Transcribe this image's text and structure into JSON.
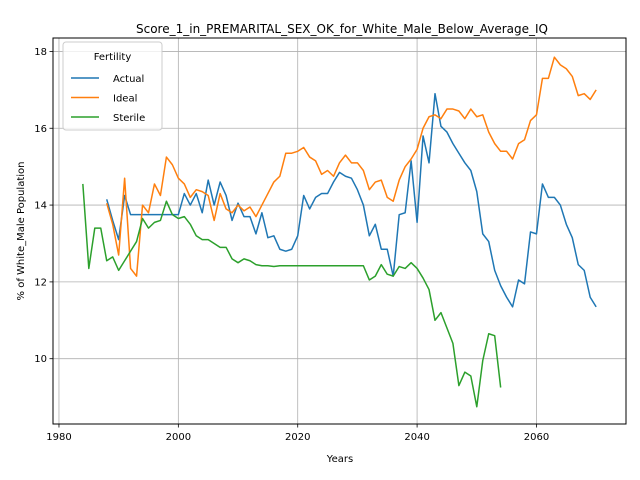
{
  "chart_data": {
    "type": "line",
    "title": "Score_1_in_PREMARITAL_SEX_OK_for_White_Male_Below_Average_IQ",
    "xlabel": "Years",
    "ylabel": "% of White_Male Population",
    "xlim": [
      1979,
      2075
    ],
    "ylim": [
      8.3,
      18.35
    ],
    "xticks": [
      1980,
      2000,
      2020,
      2040,
      2060
    ],
    "yticks": [
      10,
      12,
      14,
      16,
      18
    ],
    "grid": true,
    "legend": {
      "title": "Fertility",
      "placement": "top-left"
    },
    "series": [
      {
        "name": "Actual",
        "color": "#1f77b4",
        "points": [
          [
            1988,
            14.15
          ],
          [
            1989,
            13.6
          ],
          [
            1990,
            13.1
          ],
          [
            1991,
            14.25
          ],
          [
            1992,
            13.75
          ],
          [
            1993,
            13.75
          ],
          [
            1994,
            13.75
          ],
          [
            1995,
            13.75
          ],
          [
            1996,
            13.75
          ],
          [
            1997,
            13.75
          ],
          [
            1998,
            13.75
          ],
          [
            1999,
            13.75
          ],
          [
            2000,
            13.75
          ],
          [
            2001,
            14.3
          ],
          [
            2002,
            14.0
          ],
          [
            2003,
            14.3
          ],
          [
            2004,
            13.8
          ],
          [
            2005,
            14.65
          ],
          [
            2006,
            14.0
          ],
          [
            2007,
            14.6
          ],
          [
            2008,
            14.25
          ],
          [
            2009,
            13.6
          ],
          [
            2010,
            14.05
          ],
          [
            2011,
            13.7
          ],
          [
            2012,
            13.7
          ],
          [
            2013,
            13.25
          ],
          [
            2014,
            13.8
          ],
          [
            2015,
            13.15
          ],
          [
            2016,
            13.2
          ],
          [
            2017,
            12.85
          ],
          [
            2018,
            12.8
          ],
          [
            2019,
            12.85
          ],
          [
            2020,
            13.2
          ],
          [
            2021,
            14.25
          ],
          [
            2022,
            13.9
          ],
          [
            2023,
            14.2
          ],
          [
            2024,
            14.3
          ],
          [
            2025,
            14.3
          ],
          [
            2026,
            14.6
          ],
          [
            2027,
            14.85
          ],
          [
            2028,
            14.75
          ],
          [
            2029,
            14.7
          ],
          [
            2030,
            14.4
          ],
          [
            2031,
            14.0
          ],
          [
            2032,
            13.2
          ],
          [
            2033,
            13.5
          ],
          [
            2034,
            12.85
          ],
          [
            2035,
            12.85
          ],
          [
            2036,
            12.15
          ],
          [
            2037,
            13.75
          ],
          [
            2038,
            13.8
          ],
          [
            2039,
            15.15
          ],
          [
            2040,
            13.55
          ],
          [
            2041,
            15.8
          ],
          [
            2042,
            15.1
          ],
          [
            2043,
            16.9
          ],
          [
            2044,
            16.05
          ],
          [
            2045,
            15.9
          ],
          [
            2046,
            15.6
          ],
          [
            2047,
            15.35
          ],
          [
            2048,
            15.1
          ],
          [
            2049,
            14.9
          ],
          [
            2050,
            14.35
          ],
          [
            2051,
            13.25
          ],
          [
            2052,
            13.05
          ],
          [
            2053,
            12.3
          ],
          [
            2054,
            11.9
          ],
          [
            2055,
            11.6
          ],
          [
            2056,
            11.35
          ],
          [
            2057,
            12.05
          ],
          [
            2058,
            11.95
          ],
          [
            2059,
            13.3
          ],
          [
            2060,
            13.25
          ],
          [
            2061,
            14.55
          ],
          [
            2062,
            14.2
          ],
          [
            2063,
            14.2
          ],
          [
            2064,
            14.0
          ],
          [
            2065,
            13.5
          ],
          [
            2066,
            13.15
          ],
          [
            2067,
            12.45
          ],
          [
            2068,
            12.3
          ],
          [
            2069,
            11.6
          ],
          [
            2070,
            11.35
          ]
        ]
      },
      {
        "name": "Ideal",
        "color": "#ff7f0e",
        "points": [
          [
            1988,
            14.05
          ],
          [
            1989,
            13.5
          ],
          [
            1990,
            12.7
          ],
          [
            1991,
            14.7
          ],
          [
            1992,
            12.35
          ],
          [
            1993,
            12.15
          ],
          [
            1994,
            14.0
          ],
          [
            1995,
            13.8
          ],
          [
            1996,
            14.55
          ],
          [
            1997,
            14.25
          ],
          [
            1998,
            15.25
          ],
          [
            1999,
            15.05
          ],
          [
            2000,
            14.7
          ],
          [
            2001,
            14.55
          ],
          [
            2002,
            14.2
          ],
          [
            2003,
            14.4
          ],
          [
            2004,
            14.35
          ],
          [
            2005,
            14.25
          ],
          [
            2006,
            13.6
          ],
          [
            2007,
            14.3
          ],
          [
            2008,
            13.9
          ],
          [
            2009,
            13.8
          ],
          [
            2010,
            14.0
          ],
          [
            2011,
            13.85
          ],
          [
            2012,
            13.95
          ],
          [
            2013,
            13.7
          ],
          [
            2014,
            14.0
          ],
          [
            2015,
            14.3
          ],
          [
            2016,
            14.6
          ],
          [
            2017,
            14.75
          ],
          [
            2018,
            15.35
          ],
          [
            2019,
            15.35
          ],
          [
            2020,
            15.4
          ],
          [
            2021,
            15.5
          ],
          [
            2022,
            15.25
          ],
          [
            2023,
            15.15
          ],
          [
            2024,
            14.8
          ],
          [
            2025,
            14.9
          ],
          [
            2026,
            14.75
          ],
          [
            2027,
            15.1
          ],
          [
            2028,
            15.3
          ],
          [
            2029,
            15.1
          ],
          [
            2030,
            15.1
          ],
          [
            2031,
            14.9
          ],
          [
            2032,
            14.4
          ],
          [
            2033,
            14.6
          ],
          [
            2034,
            14.65
          ],
          [
            2035,
            14.2
          ],
          [
            2036,
            14.1
          ],
          [
            2037,
            14.65
          ],
          [
            2038,
            15.0
          ],
          [
            2039,
            15.2
          ],
          [
            2040,
            15.45
          ],
          [
            2041,
            16.0
          ],
          [
            2042,
            16.3
          ],
          [
            2043,
            16.35
          ],
          [
            2044,
            16.25
          ],
          [
            2045,
            16.5
          ],
          [
            2046,
            16.5
          ],
          [
            2047,
            16.45
          ],
          [
            2048,
            16.25
          ],
          [
            2049,
            16.5
          ],
          [
            2050,
            16.3
          ],
          [
            2051,
            16.35
          ],
          [
            2052,
            15.9
          ],
          [
            2053,
            15.6
          ],
          [
            2054,
            15.4
          ],
          [
            2055,
            15.4
          ],
          [
            2056,
            15.2
          ],
          [
            2057,
            15.6
          ],
          [
            2058,
            15.7
          ],
          [
            2059,
            16.2
          ],
          [
            2060,
            16.35
          ],
          [
            2061,
            17.3
          ],
          [
            2062,
            17.3
          ],
          [
            2063,
            17.85
          ],
          [
            2064,
            17.65
          ],
          [
            2065,
            17.55
          ],
          [
            2066,
            17.35
          ],
          [
            2067,
            16.85
          ],
          [
            2068,
            16.9
          ],
          [
            2069,
            16.75
          ],
          [
            2070,
            17.0
          ]
        ]
      },
      {
        "name": "Sterile",
        "color": "#2ca02c",
        "points": [
          [
            1984,
            14.55
          ],
          [
            1985,
            12.35
          ],
          [
            1986,
            13.4
          ],
          [
            1987,
            13.4
          ],
          [
            1988,
            12.55
          ],
          [
            1989,
            12.65
          ],
          [
            1990,
            12.3
          ],
          [
            1991,
            12.55
          ],
          [
            1992,
            12.8
          ],
          [
            1993,
            13.05
          ],
          [
            1994,
            13.65
          ],
          [
            1995,
            13.4
          ],
          [
            1996,
            13.55
          ],
          [
            1997,
            13.6
          ],
          [
            1998,
            14.1
          ],
          [
            1999,
            13.75
          ],
          [
            2000,
            13.65
          ],
          [
            2001,
            13.7
          ],
          [
            2002,
            13.5
          ],
          [
            2003,
            13.2
          ],
          [
            2004,
            13.1
          ],
          [
            2005,
            13.1
          ],
          [
            2006,
            13.0
          ],
          [
            2007,
            12.9
          ],
          [
            2008,
            12.9
          ],
          [
            2009,
            12.6
          ],
          [
            2010,
            12.5
          ],
          [
            2011,
            12.6
          ],
          [
            2012,
            12.55
          ],
          [
            2013,
            12.45
          ],
          [
            2014,
            12.42
          ],
          [
            2015,
            12.42
          ],
          [
            2016,
            12.4
          ],
          [
            2017,
            12.42
          ],
          [
            2018,
            12.42
          ],
          [
            2019,
            12.42
          ],
          [
            2020,
            12.42
          ],
          [
            2021,
            12.42
          ],
          [
            2022,
            12.42
          ],
          [
            2023,
            12.42
          ],
          [
            2024,
            12.42
          ],
          [
            2025,
            12.42
          ],
          [
            2026,
            12.42
          ],
          [
            2027,
            12.42
          ],
          [
            2028,
            12.42
          ],
          [
            2029,
            12.42
          ],
          [
            2030,
            12.42
          ],
          [
            2031,
            12.42
          ],
          [
            2032,
            12.05
          ],
          [
            2033,
            12.15
          ],
          [
            2034,
            12.45
          ],
          [
            2035,
            12.2
          ],
          [
            2036,
            12.15
          ],
          [
            2037,
            12.4
          ],
          [
            2038,
            12.35
          ],
          [
            2039,
            12.5
          ],
          [
            2040,
            12.35
          ],
          [
            2041,
            12.1
          ],
          [
            2042,
            11.8
          ],
          [
            2043,
            11.0
          ],
          [
            2044,
            11.2
          ],
          [
            2045,
            10.8
          ],
          [
            2046,
            10.4
          ],
          [
            2047,
            9.3
          ],
          [
            2048,
            9.65
          ],
          [
            2049,
            9.55
          ],
          [
            2050,
            8.75
          ],
          [
            2051,
            9.95
          ],
          [
            2052,
            10.65
          ],
          [
            2053,
            10.6
          ],
          [
            2054,
            9.25
          ]
        ]
      }
    ]
  }
}
